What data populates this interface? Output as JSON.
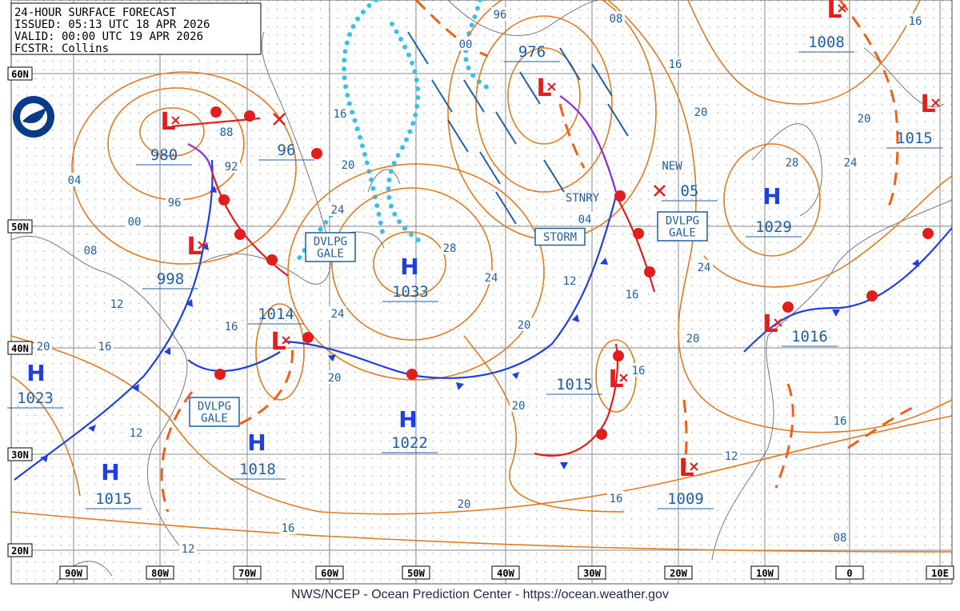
{
  "header": {
    "lines": [
      "24-HOUR SURFACE FORECAST",
      "ISSUED: 05:13 UTC 18 APR 2026",
      "VALID:  00:00 UTC 19 APR 2026",
      "FCSTR:  Collins"
    ]
  },
  "lat_labels": [
    "60N",
    "50N",
    "40N",
    "30N",
    "20N"
  ],
  "lon_labels": [
    "90W",
    "80W",
    "70W",
    "60W",
    "50W",
    "40W",
    "30W",
    "20W",
    "10W",
    "0",
    "10E"
  ],
  "centers": [
    {
      "symbol": "L",
      "pressure": "980"
    },
    {
      "pressure": "96"
    },
    {
      "symbol": "L",
      "pressure": "998"
    },
    {
      "symbol": "L",
      "pressure": "1014"
    },
    {
      "symbol": "H",
      "pressure": "1033"
    },
    {
      "symbol": "H",
      "pressure": "1023"
    },
    {
      "symbol": "H",
      "pressure": "1018"
    },
    {
      "symbol": "H",
      "pressure": "1015"
    },
    {
      "symbol": "H",
      "pressure": "1022"
    },
    {
      "symbol": "L",
      "pressure": "976"
    },
    {
      "symbol": "L",
      "pressure": "1015"
    },
    {
      "symbol": "L",
      "pressure": "1009"
    },
    {
      "symbol": "H",
      "pressure": "1029"
    },
    {
      "symbol": "L",
      "pressure": "1016"
    },
    {
      "symbol": "L",
      "pressure": "1008"
    },
    {
      "symbol": "L",
      "pressure": "1015"
    },
    {
      "pressure": "05"
    }
  ],
  "isobar_labels": [
    "04",
    "96",
    "00",
    "08",
    "12",
    "16",
    "20",
    "88",
    "92",
    "16",
    "20",
    "24",
    "28",
    "24",
    "24",
    "16",
    "20",
    "20",
    "20",
    "12",
    "16",
    "16",
    "04",
    "00",
    "96",
    "08",
    "16",
    "20",
    "24",
    "20",
    "28",
    "24",
    "20",
    "16",
    "16",
    "12",
    "08",
    "16",
    "20",
    "16",
    "12",
    "12"
  ],
  "annotations": [
    {
      "lines": [
        "DVLPG",
        "GALE"
      ]
    },
    {
      "lines": [
        "DVLPG",
        "GALE"
      ]
    },
    {
      "lines": [
        "DVLPG",
        "GALE"
      ]
    },
    {
      "lines": [
        "STORM"
      ]
    },
    {
      "lines": [
        "STNRY"
      ]
    },
    {
      "lines": [
        "NEW"
      ]
    }
  ],
  "footer": "NWS/NCEP - Ocean Prediction Center - https://ocean.weather.gov"
}
